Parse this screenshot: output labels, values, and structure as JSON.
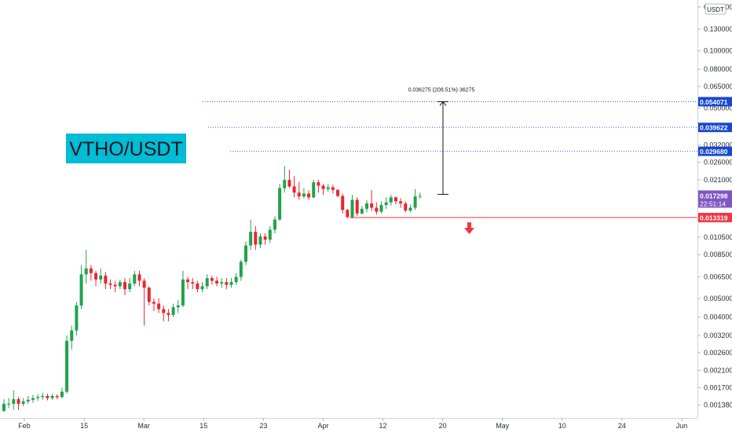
{
  "chart_data": {
    "type": "candlestick",
    "title": "VTHO/USDT",
    "currency": "USDT",
    "y_scale": "log",
    "grid": false,
    "x_ticks": [
      "Feb",
      "15",
      "Mar",
      "15",
      "23",
      "Apr",
      "12",
      "20",
      "May",
      "10",
      "24",
      "Jun"
    ],
    "y_ticks": [
      "0.170000",
      "0.130000",
      "0.100000",
      "0.080000",
      "0.065000",
      "0.050000",
      "0.040000",
      "0.032000",
      "0.026000",
      "0.021000",
      "0.016500",
      "0.013000",
      "0.010500",
      "0.008500",
      "0.006500",
      "0.005000",
      "0.004000",
      "0.003200",
      "0.002600",
      "0.002100",
      "0.001700",
      "0.001380"
    ],
    "y_range": [
      0.00118,
      0.185
    ],
    "levels": [
      {
        "value": 0.054071,
        "label": "0.054071",
        "style": "dotted",
        "color": "#2962ff"
      },
      {
        "value": 0.039622,
        "label": "0.039622",
        "style": "dotted",
        "color": "#2962ff"
      },
      {
        "value": 0.02968,
        "label": "0.029680",
        "style": "dotted",
        "color": "#2962ff"
      },
      {
        "value": 0.013319,
        "label": "0.013319",
        "style": "solid",
        "color": "#f23645"
      }
    ],
    "current_price": {
      "value": 0.017298,
      "label": "0.017298",
      "countdown": "22:51:14",
      "color": "#7e57c2"
    },
    "measure_annotation": "0.036275 (208.51%) 36275",
    "candles": [
      [
        0.00128,
        0.0014,
        0.00128,
        0.00148
      ],
      [
        0.0014,
        0.0014,
        0.00133,
        0.0015
      ],
      [
        0.0014,
        0.00148,
        0.0013,
        0.00165
      ],
      [
        0.00148,
        0.0014,
        0.0013,
        0.00152
      ],
      [
        0.0014,
        0.00144,
        0.00136,
        0.0015
      ],
      [
        0.00144,
        0.00147,
        0.0014,
        0.00154
      ],
      [
        0.00147,
        0.0015,
        0.00142,
        0.00156
      ],
      [
        0.0015,
        0.00152,
        0.00145,
        0.00157
      ],
      [
        0.00152,
        0.00154,
        0.00147,
        0.0016
      ],
      [
        0.00154,
        0.0015,
        0.00146,
        0.00158
      ],
      [
        0.0015,
        0.00154,
        0.00147,
        0.00158
      ],
      [
        0.00154,
        0.00152,
        0.00148,
        0.00157
      ],
      [
        0.00152,
        0.00162,
        0.0015,
        0.0017
      ],
      [
        0.00162,
        0.003,
        0.00158,
        0.0032
      ],
      [
        0.003,
        0.0034,
        0.0027,
        0.0036
      ],
      [
        0.0034,
        0.0046,
        0.0032,
        0.0048
      ],
      [
        0.0046,
        0.0067,
        0.0044,
        0.0075
      ],
      [
        0.0067,
        0.0072,
        0.006,
        0.009
      ],
      [
        0.0072,
        0.0068,
        0.0062,
        0.0075
      ],
      [
        0.0068,
        0.0063,
        0.0058,
        0.007
      ],
      [
        0.0063,
        0.0066,
        0.006,
        0.0072
      ],
      [
        0.0066,
        0.006,
        0.0056,
        0.0069
      ],
      [
        0.006,
        0.0059,
        0.0056,
        0.0063
      ],
      [
        0.0059,
        0.0058,
        0.0054,
        0.0062
      ],
      [
        0.0058,
        0.0061,
        0.0056,
        0.0063
      ],
      [
        0.0061,
        0.0056,
        0.0052,
        0.0064
      ],
      [
        0.0056,
        0.006,
        0.0054,
        0.0064
      ],
      [
        0.006,
        0.0067,
        0.0058,
        0.007
      ],
      [
        0.0067,
        0.0062,
        0.0058,
        0.007
      ],
      [
        0.0062,
        0.0057,
        0.0036,
        0.0064
      ],
      [
        0.0057,
        0.0048,
        0.0046,
        0.0058
      ],
      [
        0.0048,
        0.0047,
        0.0043,
        0.005
      ],
      [
        0.0047,
        0.0044,
        0.0042,
        0.005
      ],
      [
        0.0044,
        0.0042,
        0.0038,
        0.0046
      ],
      [
        0.0042,
        0.0041,
        0.0038,
        0.0044
      ],
      [
        0.0041,
        0.0045,
        0.004,
        0.0047
      ],
      [
        0.0045,
        0.0046,
        0.0042,
        0.0049
      ],
      [
        0.0046,
        0.0063,
        0.0045,
        0.007
      ],
      [
        0.0063,
        0.0061,
        0.0056,
        0.0065
      ],
      [
        0.0061,
        0.006,
        0.0056,
        0.0064
      ],
      [
        0.006,
        0.0056,
        0.0054,
        0.0062
      ],
      [
        0.0056,
        0.0058,
        0.0054,
        0.0061
      ],
      [
        0.0058,
        0.0064,
        0.0056,
        0.0067
      ],
      [
        0.0064,
        0.0062,
        0.0059,
        0.0066
      ],
      [
        0.0062,
        0.006,
        0.0058,
        0.0065
      ],
      [
        0.006,
        0.0061,
        0.0057,
        0.0064
      ],
      [
        0.0061,
        0.0059,
        0.0056,
        0.0064
      ],
      [
        0.0059,
        0.0061,
        0.0057,
        0.0064
      ],
      [
        0.0061,
        0.0065,
        0.0059,
        0.0068
      ],
      [
        0.0065,
        0.0078,
        0.0062,
        0.008
      ],
      [
        0.0078,
        0.0095,
        0.0075,
        0.01
      ],
      [
        0.0095,
        0.0112,
        0.009,
        0.013
      ],
      [
        0.0112,
        0.0096,
        0.009,
        0.012
      ],
      [
        0.0096,
        0.0106,
        0.0092,
        0.011
      ],
      [
        0.0106,
        0.0102,
        0.0096,
        0.011
      ],
      [
        0.0102,
        0.0115,
        0.0098,
        0.012
      ],
      [
        0.0115,
        0.013,
        0.011,
        0.0135
      ],
      [
        0.013,
        0.019,
        0.0128,
        0.02
      ],
      [
        0.019,
        0.021,
        0.018,
        0.0248
      ],
      [
        0.021,
        0.0194,
        0.019,
        0.0238
      ],
      [
        0.0194,
        0.018,
        0.017,
        0.022
      ],
      [
        0.018,
        0.0172,
        0.0165,
        0.0205
      ],
      [
        0.0172,
        0.0178,
        0.0168,
        0.019
      ],
      [
        0.0178,
        0.017,
        0.0165,
        0.0185
      ],
      [
        0.017,
        0.0204,
        0.0168,
        0.021
      ],
      [
        0.0204,
        0.0196,
        0.018,
        0.021
      ],
      [
        0.0196,
        0.0188,
        0.0175,
        0.02
      ],
      [
        0.0188,
        0.0192,
        0.0182,
        0.02
      ],
      [
        0.0192,
        0.0186,
        0.0178,
        0.0198
      ],
      [
        0.0186,
        0.0173,
        0.017,
        0.0188
      ],
      [
        0.0173,
        0.0146,
        0.014,
        0.0178
      ],
      [
        0.0146,
        0.0134,
        0.01319,
        0.0148
      ],
      [
        0.0134,
        0.0165,
        0.01319,
        0.0175
      ],
      [
        0.0165,
        0.014,
        0.0136,
        0.017
      ],
      [
        0.014,
        0.0148,
        0.0138,
        0.0153
      ],
      [
        0.0148,
        0.0158,
        0.0142,
        0.0164
      ],
      [
        0.0158,
        0.015,
        0.0144,
        0.0186
      ],
      [
        0.015,
        0.0143,
        0.0138,
        0.016
      ],
      [
        0.0143,
        0.0155,
        0.014,
        0.0162
      ],
      [
        0.0155,
        0.016,
        0.0148,
        0.017
      ],
      [
        0.016,
        0.017,
        0.0154,
        0.0175
      ],
      [
        0.017,
        0.0162,
        0.0156,
        0.0172
      ],
      [
        0.0162,
        0.0158,
        0.015,
        0.0168
      ],
      [
        0.0158,
        0.0145,
        0.0142,
        0.0162
      ],
      [
        0.0145,
        0.015,
        0.0142,
        0.0156
      ],
      [
        0.015,
        0.0172,
        0.0146,
        0.0188
      ],
      [
        0.0172,
        0.0173,
        0.0167,
        0.018
      ]
    ]
  }
}
